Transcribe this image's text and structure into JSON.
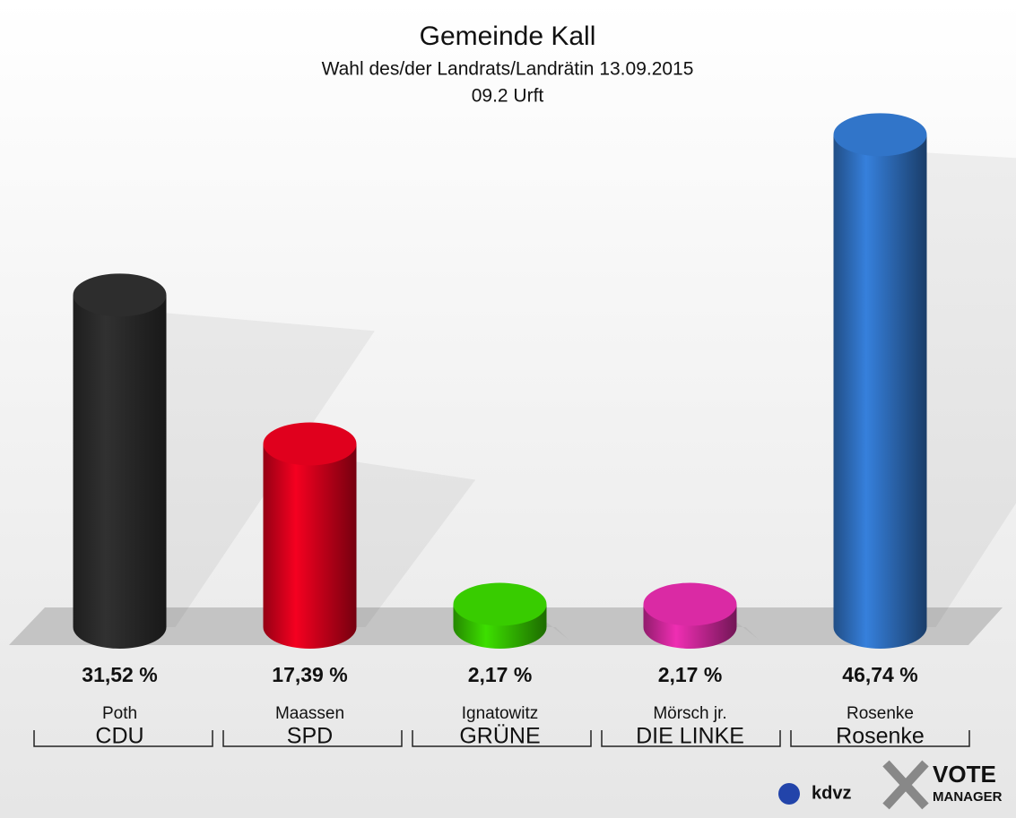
{
  "chart_data": {
    "type": "bar",
    "title": "Gemeinde Kall",
    "subtitle": "Wahl des/der Landrats/Landrätin 13.09.2015",
    "subtitle2": "09.2 Urft",
    "categories": [
      "Poth",
      "Maassen",
      "Ignatowitz",
      "Mörsch jr.",
      "Rosenke"
    ],
    "groups": [
      "CDU",
      "SPD",
      "GRÜNE",
      "DIE LINKE",
      "Rosenke"
    ],
    "values": [
      31.52,
      17.39,
      2.17,
      2.17,
      46.74
    ],
    "value_labels": [
      "31,52 %",
      "17,39 %",
      "2,17 %",
      "2,17 %",
      "46,74 %"
    ],
    "colors": [
      "#2b2b2b",
      "#d5001c",
      "#35c200",
      "#d0289c",
      "#2f6fbf"
    ],
    "ylim": [
      0,
      50
    ]
  },
  "footer": {
    "brand": "kdvz",
    "product": [
      "VOTE",
      "MANAGER"
    ]
  }
}
